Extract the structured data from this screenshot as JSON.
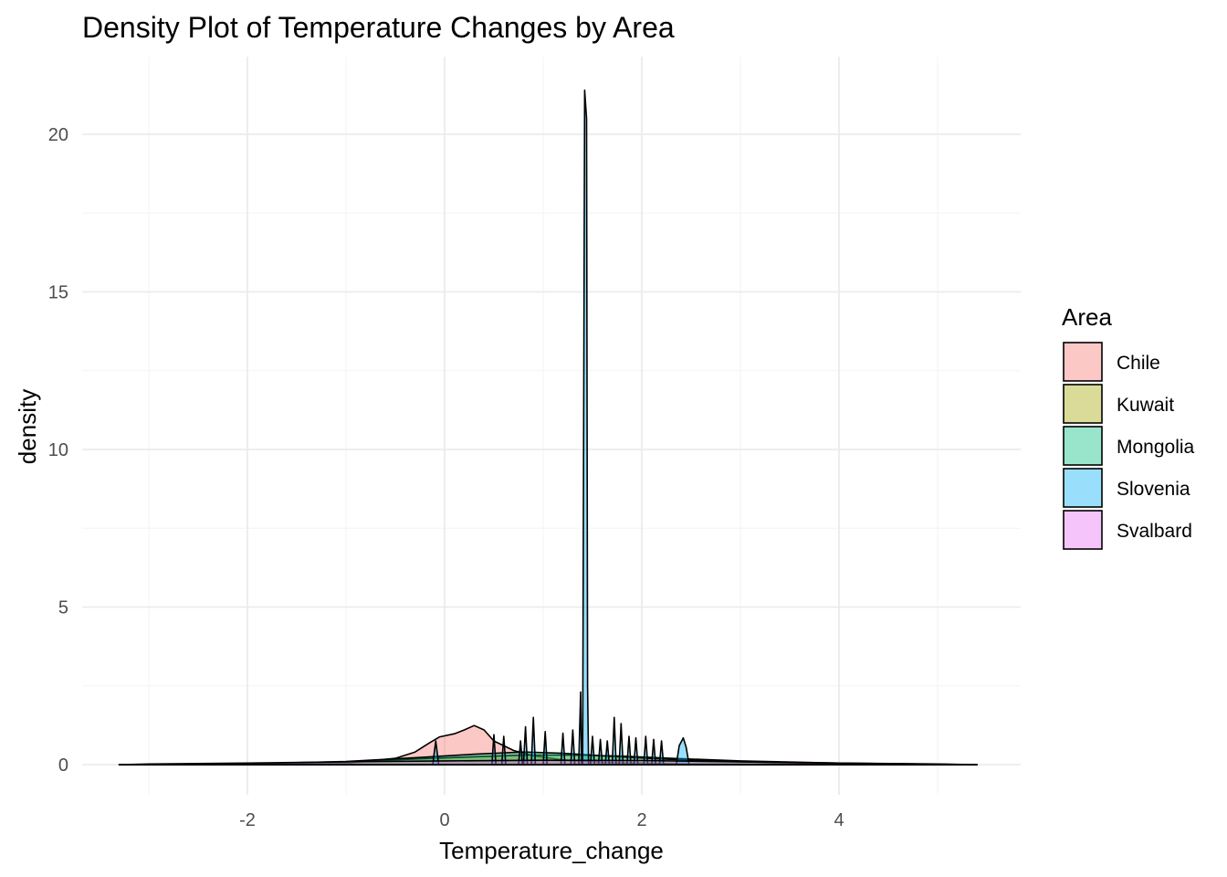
{
  "chart_data": {
    "type": "area",
    "subtype": "density",
    "title": "Density Plot of Temperature Changes by Area",
    "xlabel": "Temperature_change",
    "ylabel": "density",
    "xlim": [
      -3.3,
      5.4
    ],
    "ylim": [
      0,
      21.4
    ],
    "x_ticks": [
      -2,
      0,
      2,
      4
    ],
    "x_tick_labels": [
      "-2",
      "0",
      "2",
      "4"
    ],
    "y_ticks": [
      0,
      5,
      10,
      15,
      20
    ],
    "y_tick_labels": [
      "0",
      "5",
      "10",
      "15",
      "20"
    ],
    "grid": true,
    "legend": {
      "title": "Area",
      "position": "right",
      "entries": [
        "Chile",
        "Kuwait",
        "Mongolia",
        "Slovenia",
        "Svalbard"
      ]
    },
    "series": [
      {
        "name": "Chile",
        "color": "#F8766D",
        "points": [
          [
            -3.3,
            0.0
          ],
          [
            -2.0,
            0.02
          ],
          [
            -1.0,
            0.04
          ],
          [
            -0.5,
            0.2
          ],
          [
            -0.3,
            0.4
          ],
          [
            -0.15,
            0.7
          ],
          [
            -0.05,
            0.88
          ],
          [
            0.1,
            0.98
          ],
          [
            0.2,
            1.1
          ],
          [
            0.3,
            1.24
          ],
          [
            0.4,
            1.1
          ],
          [
            0.5,
            0.75
          ],
          [
            0.7,
            0.45
          ],
          [
            0.9,
            0.28
          ],
          [
            1.2,
            0.15
          ],
          [
            1.6,
            0.07
          ],
          [
            2.5,
            0.02
          ],
          [
            5.4,
            0.0
          ]
        ]
      },
      {
        "name": "Kuwait",
        "color": "#A3A500",
        "points": [
          [
            -3.3,
            0.0
          ],
          [
            -2.0,
            0.03
          ],
          [
            -1.0,
            0.08
          ],
          [
            -0.3,
            0.18
          ],
          [
            0.3,
            0.25
          ],
          [
            0.8,
            0.3
          ],
          [
            1.3,
            0.3
          ],
          [
            1.8,
            0.27
          ],
          [
            2.3,
            0.2
          ],
          [
            3.0,
            0.12
          ],
          [
            4.0,
            0.05
          ],
          [
            5.4,
            0.0
          ]
        ]
      },
      {
        "name": "Mongolia",
        "color": "#00BF7D",
        "points": [
          [
            -3.3,
            0.0
          ],
          [
            -2.0,
            0.03
          ],
          [
            -1.0,
            0.1
          ],
          [
            -0.3,
            0.22
          ],
          [
            0.3,
            0.33
          ],
          [
            0.8,
            0.4
          ],
          [
            1.2,
            0.36
          ],
          [
            1.6,
            0.28
          ],
          [
            2.2,
            0.18
          ],
          [
            3.0,
            0.09
          ],
          [
            4.0,
            0.03
          ],
          [
            5.4,
            0.0
          ]
        ]
      },
      {
        "name": "Slovenia",
        "color": "#00B0F6",
        "points": [
          [
            -3.3,
            0.0
          ],
          [
            -0.12,
            0.0
          ],
          [
            -0.09,
            0.75
          ],
          [
            -0.06,
            0.0
          ],
          [
            0.48,
            0.0
          ],
          [
            0.5,
            0.95
          ],
          [
            0.52,
            0.0
          ],
          [
            0.58,
            0.0
          ],
          [
            0.6,
            0.9
          ],
          [
            0.62,
            0.0
          ],
          [
            0.75,
            0.0
          ],
          [
            0.77,
            0.75
          ],
          [
            0.79,
            0.0
          ],
          [
            0.8,
            0.0
          ],
          [
            0.82,
            1.2
          ],
          [
            0.84,
            0.0
          ],
          [
            0.88,
            0.0
          ],
          [
            0.9,
            1.5
          ],
          [
            0.92,
            0.0
          ],
          [
            1.0,
            0.0
          ],
          [
            1.02,
            1.05
          ],
          [
            1.04,
            0.0
          ],
          [
            1.18,
            0.0
          ],
          [
            1.2,
            1.0
          ],
          [
            1.22,
            0.0
          ],
          [
            1.28,
            0.0
          ],
          [
            1.3,
            1.1
          ],
          [
            1.32,
            0.0
          ],
          [
            1.36,
            0.0
          ],
          [
            1.38,
            2.3
          ],
          [
            1.39,
            0.0
          ],
          [
            1.4,
            0.0
          ],
          [
            1.42,
            21.4
          ],
          [
            1.44,
            20.5
          ],
          [
            1.45,
            2.5
          ],
          [
            1.46,
            0.0
          ],
          [
            1.48,
            0.0
          ],
          [
            1.5,
            0.9
          ],
          [
            1.52,
            0.0
          ],
          [
            1.56,
            0.0
          ],
          [
            1.58,
            0.8
          ],
          [
            1.6,
            0.0
          ],
          [
            1.63,
            0.0
          ],
          [
            1.65,
            0.75
          ],
          [
            1.67,
            0.0
          ],
          [
            1.7,
            0.0
          ],
          [
            1.72,
            1.5
          ],
          [
            1.74,
            0.0
          ],
          [
            1.77,
            0.0
          ],
          [
            1.79,
            1.3
          ],
          [
            1.81,
            0.0
          ],
          [
            1.85,
            0.0
          ],
          [
            1.87,
            0.9
          ],
          [
            1.89,
            0.0
          ],
          [
            1.92,
            0.0
          ],
          [
            1.94,
            0.85
          ],
          [
            1.96,
            0.0
          ],
          [
            2.02,
            0.0
          ],
          [
            2.04,
            0.9
          ],
          [
            2.06,
            0.0
          ],
          [
            2.1,
            0.0
          ],
          [
            2.12,
            0.8
          ],
          [
            2.14,
            0.0
          ],
          [
            2.18,
            0.0
          ],
          [
            2.2,
            0.75
          ],
          [
            2.22,
            0.0
          ],
          [
            2.35,
            0.0
          ],
          [
            2.38,
            0.6
          ],
          [
            2.42,
            0.85
          ],
          [
            2.45,
            0.55
          ],
          [
            2.48,
            0.0
          ],
          [
            5.4,
            0.0
          ]
        ]
      },
      {
        "name": "Svalbard",
        "color": "#E76BF3",
        "points": [
          [
            -3.3,
            0.0
          ],
          [
            -3.0,
            0.02
          ],
          [
            -2.0,
            0.05
          ],
          [
            -1.0,
            0.09
          ],
          [
            0.0,
            0.12
          ],
          [
            1.0,
            0.14
          ],
          [
            2.0,
            0.13
          ],
          [
            3.0,
            0.09
          ],
          [
            4.0,
            0.05
          ],
          [
            5.0,
            0.02
          ],
          [
            5.4,
            0.0
          ]
        ]
      }
    ]
  }
}
